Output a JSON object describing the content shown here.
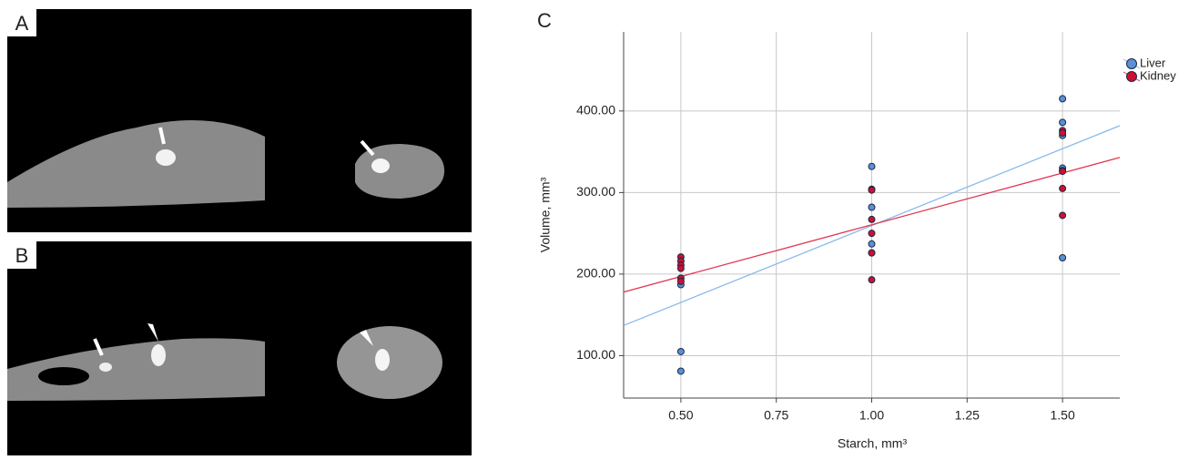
{
  "panel_labels": [
    "A",
    "B",
    "C"
  ],
  "chart_data": {
    "type": "scatter",
    "x_label": "Starch, mm³",
    "y_label": "Volume, mm³",
    "xlim": [
      0.35,
      1.65
    ],
    "ylim": [
      48,
      497
    ],
    "xticks": [
      {
        "value": 0.5,
        "label": "0.50"
      },
      {
        "value": 0.75,
        "label": "0.75"
      },
      {
        "value": 1.0,
        "label": "1.00"
      },
      {
        "value": 1.25,
        "label": "1.25"
      },
      {
        "value": 1.5,
        "label": "1.50"
      }
    ],
    "yticks": [
      {
        "value": 100,
        "label": "100.00"
      },
      {
        "value": 200,
        "label": "200.00"
      },
      {
        "value": 300,
        "label": "300.00"
      },
      {
        "value": 400,
        "label": "400.00"
      }
    ],
    "grid": true,
    "legend": "top-right",
    "series": [
      {
        "name": "Liver",
        "color": "#5b8fd6",
        "line_color": "#8ab8ec",
        "x": [
          0.5,
          0.5,
          0.5,
          1.0,
          1.0,
          1.0,
          1.0,
          1.5,
          1.5,
          1.5,
          1.5,
          1.5,
          1.5
        ],
        "values": [
          187,
          105,
          81,
          332,
          282,
          237,
          226,
          415,
          386,
          370,
          330,
          327,
          220
        ],
        "fit_x": [
          0.35,
          1.65
        ],
        "fit_y": [
          137,
          382
        ]
      },
      {
        "name": "Kidney",
        "color": "#cc1034",
        "line_color": "#e03650",
        "x": [
          0.5,
          0.5,
          0.5,
          0.5,
          0.5,
          0.5,
          1.0,
          1.0,
          1.0,
          1.0,
          1.0,
          1.0,
          1.5,
          1.5,
          1.5,
          1.5,
          1.5
        ],
        "values": [
          221,
          216,
          211,
          207,
          195,
          191,
          304,
          303,
          267,
          250,
          226,
          193,
          376,
          373,
          326,
          305,
          272
        ],
        "fit_x": [
          0.35,
          1.65
        ],
        "fit_y": [
          178,
          343
        ]
      }
    ]
  }
}
